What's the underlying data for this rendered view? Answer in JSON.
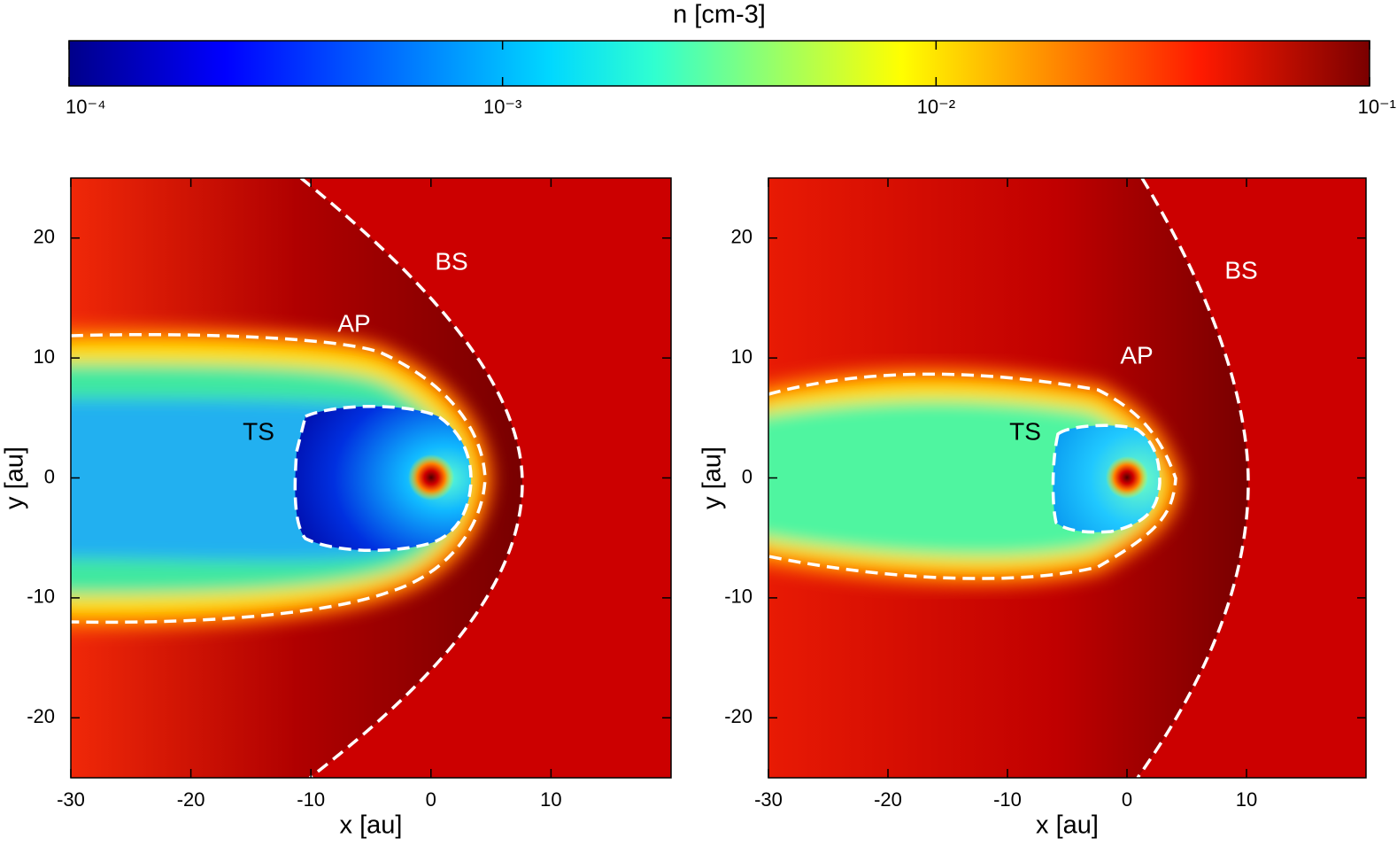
{
  "chart_data": [
    {
      "type": "colorbar",
      "title": "n [cm-3]",
      "scale": "log",
      "xlim": [
        0.0001,
        0.1
      ],
      "xticks": [
        {
          "value": 0.0001,
          "label": "10⁻⁴"
        },
        {
          "value": 0.001,
          "label": "10⁻³"
        },
        {
          "value": 0.01,
          "label": "10⁻²"
        },
        {
          "value": 0.1,
          "label": "10⁻¹"
        }
      ]
    },
    {
      "type": "heatmap",
      "xlabel": "x [au]",
      "ylabel": "y [au]",
      "xlim": [
        -30,
        20
      ],
      "ylim": [
        -25,
        25
      ],
      "xticks": [
        -30,
        -20,
        -10,
        0,
        10
      ],
      "yticks": [
        -20,
        -10,
        0,
        10,
        20
      ],
      "annotations": [
        "BS",
        "AP",
        "TS"
      ]
    },
    {
      "type": "heatmap",
      "xlabel": "x [au]",
      "ylabel": "y [au]",
      "xlim": [
        -30,
        20
      ],
      "ylim": [
        -25,
        25
      ],
      "xticks": [
        -30,
        -20,
        -10,
        0,
        10
      ],
      "yticks": [
        -20,
        -10,
        0,
        10,
        20
      ],
      "annotations": [
        "BS",
        "AP",
        "TS"
      ]
    }
  ]
}
